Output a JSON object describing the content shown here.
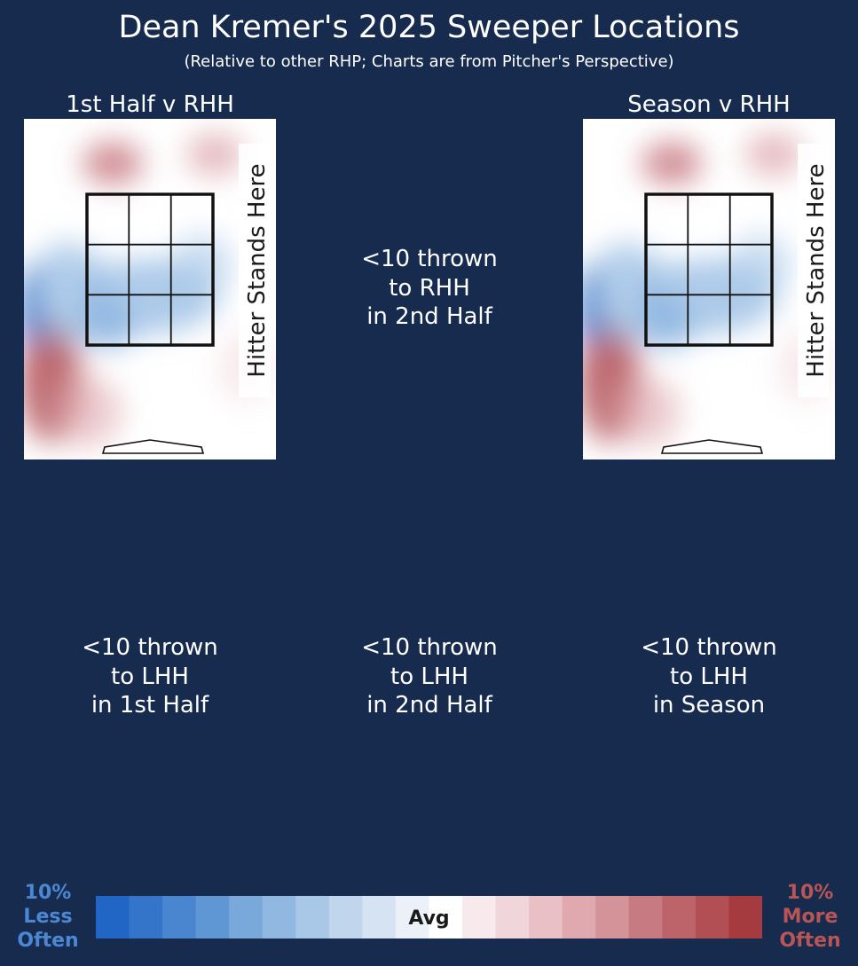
{
  "chart_data": {
    "type": "heatmap",
    "title": "Dean Kremer's 2025 Sweeper Locations",
    "subtitle": "(Relative to other RHP; Charts are from Pitcher's Perspective)",
    "panels": [
      {
        "title": "1st Half v RHH",
        "has_chart": true,
        "side_label": "Hitter Stands Here"
      },
      {
        "title": "",
        "has_chart": false,
        "message": "<10 thrown\nto RHH\nin 2nd Half"
      },
      {
        "title": "Season v RHH",
        "has_chart": true,
        "side_label": "Hitter Stands Here"
      },
      {
        "title": "",
        "has_chart": false,
        "message": "<10 thrown\nto LHH\nin 1st Half"
      },
      {
        "title": "",
        "has_chart": false,
        "message": "<10 thrown\nto LHH\nin 2nd Half"
      },
      {
        "title": "",
        "has_chart": false,
        "message": "<10 thrown\nto LHH\nin Season"
      }
    ],
    "colorbar": {
      "left_label": "10%\nLess\nOften",
      "center_label": "Avg",
      "right_label": "10%\nMore\nOften",
      "range": [
        -10,
        10
      ],
      "colors": [
        "#2166c4",
        "#3475c9",
        "#4a86cf",
        "#5f96d4",
        "#79a8db",
        "#91b8e1",
        "#a9c8e7",
        "#c1d6ed",
        "#d6e3f3",
        "#ecf1f9",
        "#ffffff",
        "#f8eaec",
        "#f0d6da",
        "#e8c0c5",
        "#dfa9af",
        "#d49299",
        "#c87a82",
        "#bd646b",
        "#b14f55",
        "#a53a3f"
      ]
    }
  }
}
